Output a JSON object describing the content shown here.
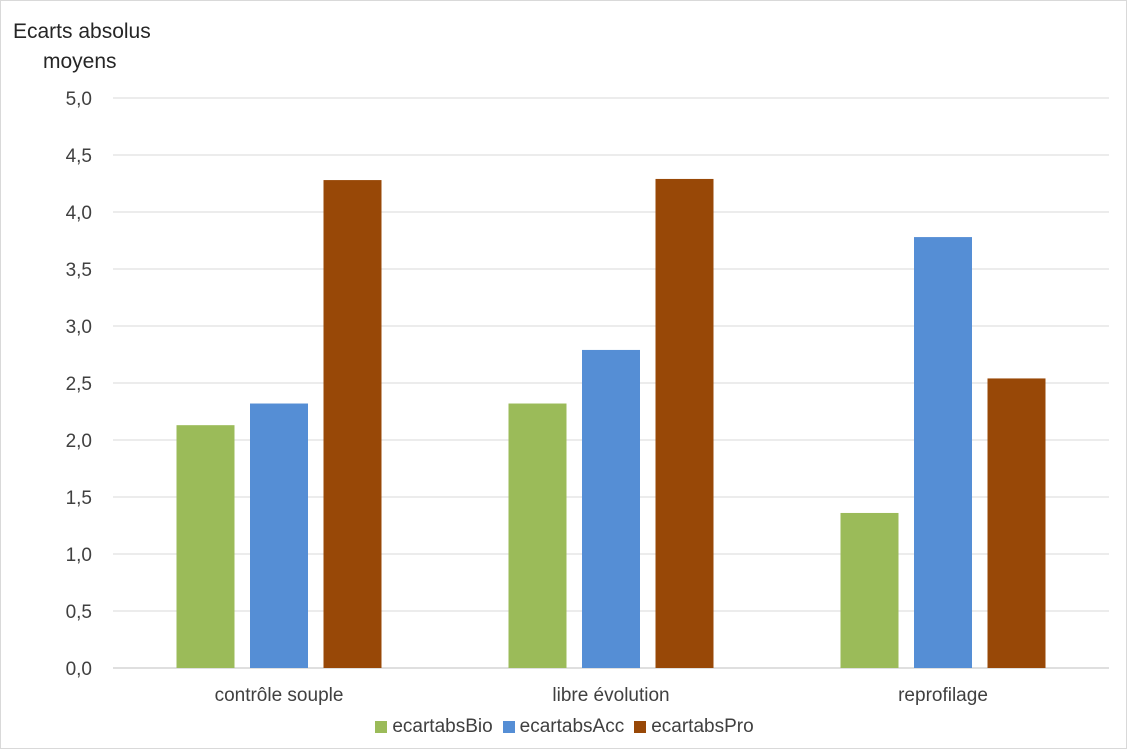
{
  "chart_data": {
    "type": "bar",
    "title": "",
    "ylabel": [
      "Ecarts absolus",
      "moyens"
    ],
    "xlabel": "",
    "categories": [
      "contrôle souple",
      "libre évolution",
      "reprofilage"
    ],
    "series": [
      {
        "name": "ecartabsBio",
        "color": "#9bbb59",
        "values": [
          2.13,
          2.32,
          1.36
        ]
      },
      {
        "name": "ecartabsAcc",
        "color": "#558ed5",
        "values": [
          2.32,
          2.79,
          3.78
        ]
      },
      {
        "name": "ecartabsPro",
        "color": "#984807",
        "values": [
          4.28,
          4.29,
          2.54
        ]
      }
    ],
    "ylim": [
      0,
      5
    ],
    "yticks": [
      "0,0",
      "0,5",
      "1,0",
      "1,5",
      "2,0",
      "2,5",
      "3,0",
      "3,5",
      "4,0",
      "4,5",
      "5,0"
    ],
    "grid": true,
    "legend": "bottom"
  }
}
